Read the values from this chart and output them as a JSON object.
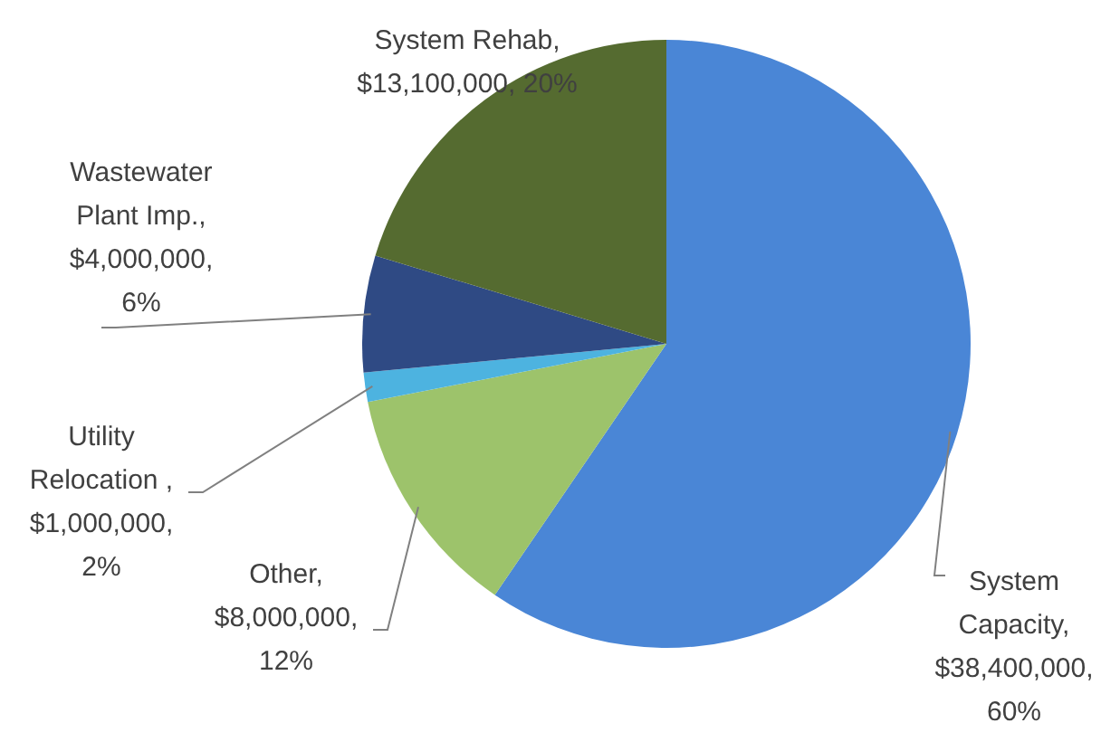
{
  "chart_data": {
    "type": "pie",
    "categories": [
      "System Capacity",
      "Other",
      "Utility Relocation",
      "Wastewater Plant Imp.",
      "System Rehab"
    ],
    "values": [
      38400000,
      8000000,
      1000000,
      4000000,
      13100000
    ],
    "value_labels": [
      ", $38,400,000, 60%",
      ", $8,000,000, 12%",
      ", $1,000,000, 2%",
      ", $4,000,000, 6%",
      ", $13,100,000, 20%"
    ],
    "colors": [
      "#4a86d6",
      "#9dc36b",
      "#4db3e0",
      "#2f4a84",
      "#556b30"
    ]
  }
}
